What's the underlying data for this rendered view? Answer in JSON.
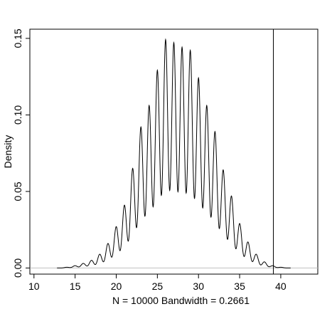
{
  "chart_data": {
    "type": "line",
    "title": "",
    "xlabel": "N = 10000   Bandwidth = 0.2661",
    "ylabel": "Density",
    "xlim": [
      9.5,
      44.5
    ],
    "ylim": [
      -0.004,
      0.156
    ],
    "xticks": [
      10,
      15,
      20,
      25,
      30,
      35,
      40
    ],
    "xtick_labels": [
      "10",
      "15",
      "20",
      "25",
      "30",
      "35",
      "40"
    ],
    "yticks": [
      0.0,
      0.05,
      0.1,
      0.15
    ],
    "ytick_labels": [
      "0.00",
      "0.05",
      "0.10",
      "0.15"
    ],
    "grid": false,
    "series": [
      {
        "curve": "kernel-density",
        "x": [
          14,
          15,
          16,
          17,
          18,
          19,
          20,
          21,
          22,
          23,
          24,
          25,
          26,
          27,
          28,
          29,
          30,
          31,
          32,
          33,
          34,
          35,
          36,
          37,
          38,
          39,
          40
        ],
        "y": [
          0.0005,
          0.0015,
          0.003,
          0.005,
          0.009,
          0.016,
          0.027,
          0.041,
          0.065,
          0.092,
          0.106,
          0.129,
          0.149,
          0.147,
          0.144,
          0.142,
          0.124,
          0.106,
          0.089,
          0.064,
          0.047,
          0.029,
          0.017,
          0.009,
          0.004,
          0.0015,
          0.0005
        ],
        "valley_fraction": 0.3
      }
    ],
    "reference_lines": [
      {
        "orientation": "vertical",
        "value": 39.1,
        "color": "#000000"
      },
      {
        "orientation": "horizontal",
        "value": 0.0,
        "color": "#bfbfbf"
      }
    ]
  }
}
